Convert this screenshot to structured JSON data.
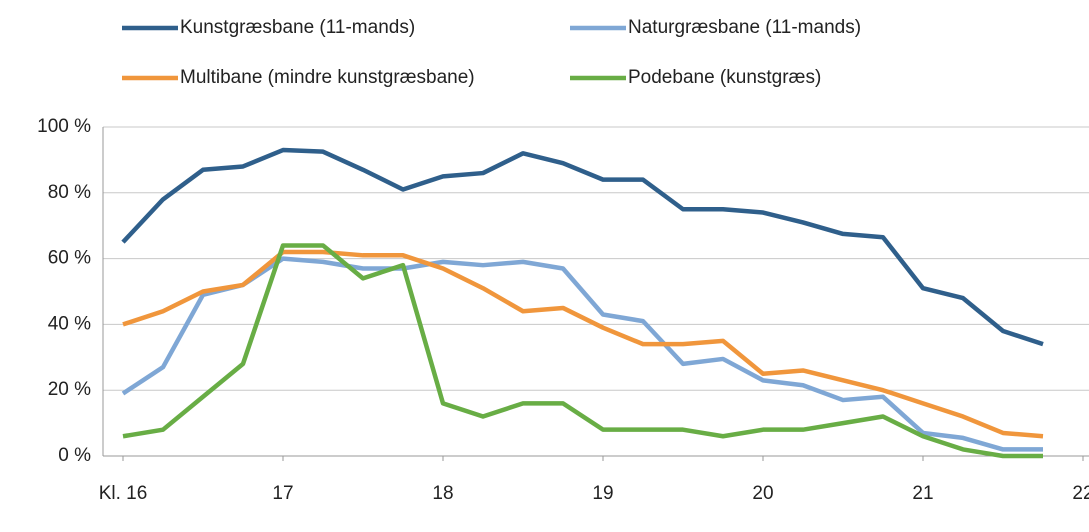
{
  "chart_data": {
    "type": "line",
    "x": [
      16,
      16.25,
      16.5,
      16.75,
      17,
      17.25,
      17.5,
      17.75,
      18,
      18.25,
      18.5,
      18.75,
      19,
      19.25,
      19.5,
      19.75,
      20,
      20.25,
      20.5,
      20.75,
      21,
      21.25,
      21.5,
      21.75
    ],
    "series": [
      {
        "name": "Kunstgræsbane (11-mands)",
        "color": "#2f5f8b",
        "values": [
          65,
          78,
          87,
          88,
          93,
          92.5,
          87,
          81,
          85,
          86,
          92,
          89,
          84,
          84,
          75,
          75,
          74,
          71,
          67.5,
          66.5,
          51,
          48,
          38,
          34
        ]
      },
      {
        "name": "Naturgræsbane (11-mands)",
        "color": "#7fa7d5",
        "values": [
          19,
          27,
          49,
          52,
          60,
          59,
          57,
          57,
          59,
          58,
          59,
          57,
          43,
          41,
          28,
          29.5,
          23,
          21.5,
          17,
          18,
          7,
          5.5,
          2,
          2
        ]
      },
      {
        "name": "Multibane (mindre kunstgræsbane)",
        "color": "#f0963c",
        "values": [
          40,
          44,
          50,
          52,
          62,
          62,
          61,
          61,
          57,
          51,
          44,
          45,
          39,
          34,
          34,
          35,
          25,
          26,
          23,
          20,
          16,
          12,
          7,
          6
        ]
      },
      {
        "name": "Podebane (kunstgræs)",
        "color": "#68ad45",
        "values": [
          6,
          8,
          18,
          28,
          64,
          64,
          54,
          58,
          16,
          12,
          16,
          16,
          8,
          8,
          8,
          6,
          8,
          8,
          10,
          12,
          6,
          2,
          0,
          0
        ]
      }
    ],
    "xlim": [
      16,
      22
    ],
    "xticks": [
      {
        "value": 16,
        "label": "Kl. 16"
      },
      17,
      18,
      19,
      20,
      21,
      22
    ],
    "ylim": [
      0,
      100
    ],
    "yticks": [
      {
        "value": 0,
        "label": "0 %"
      },
      {
        "value": 20,
        "label": "20 %"
      },
      {
        "value": 40,
        "label": "40 %"
      },
      {
        "value": 60,
        "label": "60 %"
      },
      {
        "value": 80,
        "label": "80 %"
      },
      {
        "value": 100,
        "label": "100 %"
      }
    ],
    "grid": true,
    "legend": "top"
  }
}
